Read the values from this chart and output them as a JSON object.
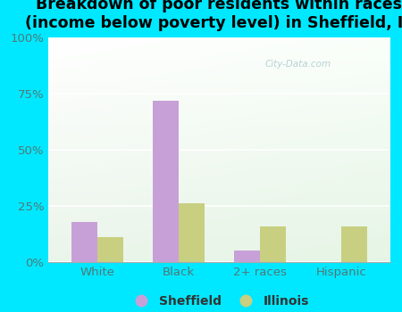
{
  "title": "Breakdown of poor residents within races\n(income below poverty level) in Sheffield, IL",
  "categories": [
    "White",
    "Black",
    "2+ races",
    "Hispanic"
  ],
  "sheffield_values": [
    18,
    72,
    5,
    0
  ],
  "illinois_values": [
    11,
    26,
    16,
    16
  ],
  "sheffield_color": "#c8a0d8",
  "illinois_color": "#c8cf80",
  "background_outer": "#00e8ff",
  "ylim": [
    0,
    100
  ],
  "yticks": [
    0,
    25,
    50,
    75,
    100
  ],
  "ytick_labels": [
    "0%",
    "25%",
    "50%",
    "75%",
    "100%"
  ],
  "legend_sheffield": "Sheffield",
  "legend_illinois": "Illinois",
  "bar_width": 0.32,
  "title_fontsize": 12.5,
  "tick_fontsize": 9.5,
  "legend_fontsize": 10
}
